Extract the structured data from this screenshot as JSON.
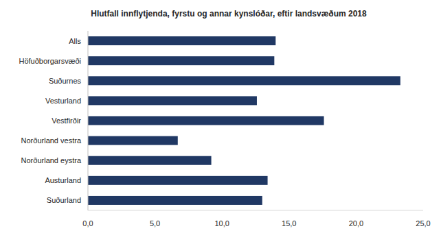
{
  "chart_data": {
    "type": "bar",
    "orientation": "horizontal",
    "title": "Hlutfall innflytjenda, fyrstu og annar kynslóðar, eftir landsvæðum 2018",
    "categories": [
      "Alls",
      "Höfuðborgarsvæði",
      "Suðurnes",
      "Vesturland",
      "Vestfirðir",
      "Norðurland vestra",
      "Norðurland eystra",
      "Austurland",
      "Suðurland"
    ],
    "values": [
      14.0,
      13.9,
      23.3,
      12.6,
      17.6,
      6.7,
      9.2,
      13.4,
      13.0
    ],
    "color": "#203864",
    "xlim": [
      0,
      25
    ],
    "xticks": [
      {
        "value": 0,
        "label": "0,0"
      },
      {
        "value": 5,
        "label": "5,0"
      },
      {
        "value": 10,
        "label": "10,0"
      },
      {
        "value": 15,
        "label": "15,0"
      },
      {
        "value": 20,
        "label": "20,0"
      },
      {
        "value": 25,
        "label": "25,0"
      }
    ],
    "grid": false
  }
}
